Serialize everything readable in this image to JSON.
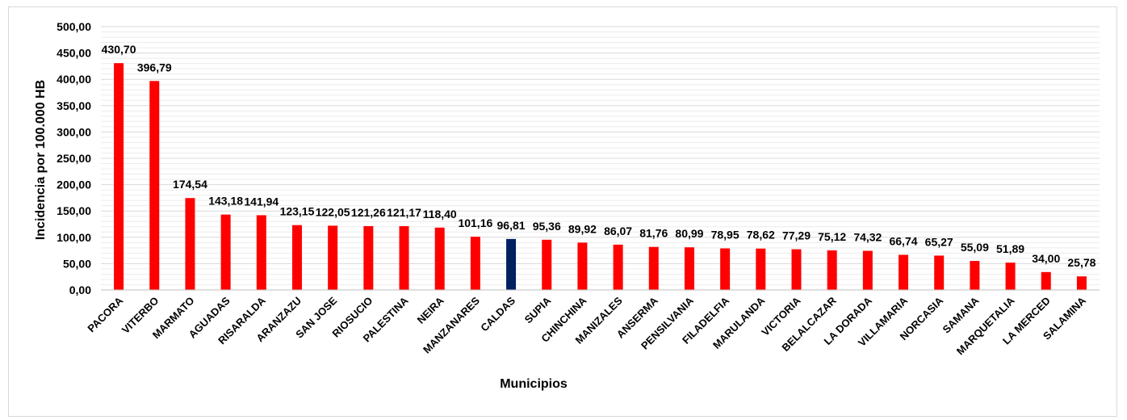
{
  "chart_data": {
    "type": "bar",
    "ylabel": "Incidencia por 100.000 HB",
    "xlabel": "Municipios",
    "ylim": [
      0,
      500
    ],
    "yticks": [
      "0,00",
      "50,00",
      "100,00",
      "150,00",
      "200,00",
      "250,00",
      "300,00",
      "350,00",
      "400,00",
      "450,00",
      "500,00"
    ],
    "grid": true,
    "categories": [
      "PACORA",
      "VITERBO",
      "MARMATO",
      "AGUADAS",
      "RISARALDA",
      "ARANZAZU",
      "SAN JOSE",
      "RIOSUCIO",
      "PALESTINA",
      "NEIRA",
      "MANZANARES",
      "CALDAS",
      "SUPIA",
      "CHINCHINA",
      "MANIZALES",
      "ANSERMA",
      "PENSILVANIA",
      "FILADELFIA",
      "MARULANDA",
      "VICTORIA",
      "BELALCAZAR",
      "LA DORADA",
      "VILLAMARIA",
      "NORCASIA",
      "SAMANA",
      "MARQUETALIA",
      "LA MERCED",
      "SALAMINA"
    ],
    "values": [
      430.7,
      396.79,
      174.54,
      143.18,
      141.94,
      123.15,
      122.05,
      121.26,
      121.17,
      118.4,
      101.16,
      96.81,
      95.36,
      89.92,
      86.07,
      81.76,
      80.99,
      78.95,
      78.62,
      77.29,
      75.12,
      74.32,
      66.74,
      65.27,
      55.09,
      51.89,
      34.0,
      25.78
    ],
    "value_labels": [
      "430,70",
      "396,79",
      "174,54",
      "143,18",
      "141,94",
      "123,15",
      "122,05",
      "121,26",
      "121,17",
      "118,40",
      "101,16",
      "96,81",
      "95,36",
      "89,92",
      "86,07",
      "81,76",
      "80,99",
      "78,95",
      "78,62",
      "77,29",
      "75,12",
      "74,32",
      "66,74",
      "65,27",
      "55,09",
      "51,89",
      "34,00",
      "25,78"
    ],
    "colors": {
      "default": "#ff0000",
      "highlight": "#002060"
    },
    "highlight_category": "CALDAS"
  }
}
